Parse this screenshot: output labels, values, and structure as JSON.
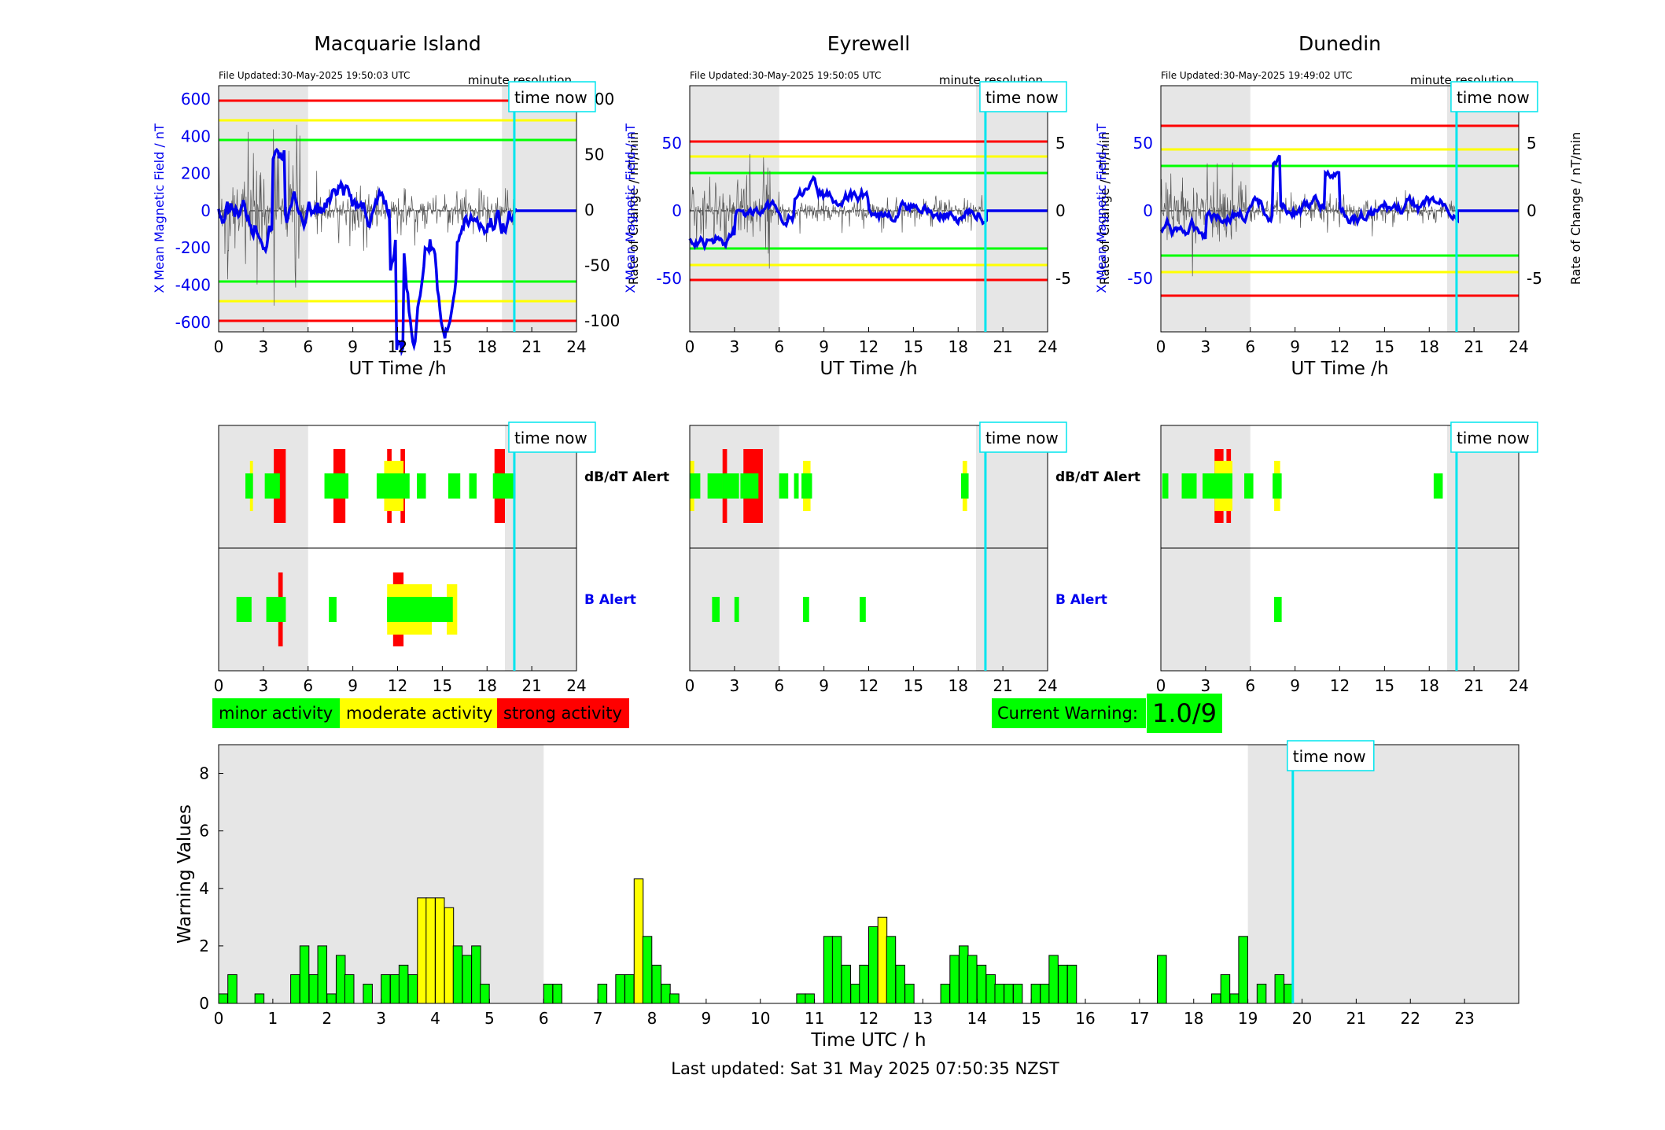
{
  "panels": [
    {
      "title": "Macquarie Island",
      "file_updated": "File Updated:30-May-2025 19:50:03 UTC",
      "resolution": "minute resolution",
      "ylabel_left": "X Mean Magnetic Field / nT",
      "ylabel_right": "Rate of Change / nT/min",
      "left_ticks": [
        "600",
        "400",
        "200",
        "0",
        "-200",
        "-400",
        "-600"
      ],
      "right_ticks": [
        "100",
        "50",
        "0",
        "-50",
        "-100"
      ]
    },
    {
      "title": "Eyrewell",
      "file_updated": "File Updated:30-May-2025 19:50:05 UTC",
      "resolution": "minute resolution",
      "ylabel_left": "X Mean Magnetic Field / nT",
      "ylabel_right": "Rate of Change / nT/min",
      "left_ticks": [
        "50",
        "0",
        "-50"
      ],
      "right_ticks": [
        "5",
        "0",
        "-5"
      ]
    },
    {
      "title": "Dunedin",
      "file_updated": "File Updated:30-May-2025 19:49:02 UTC",
      "resolution": "minute resolution",
      "ylabel_left": "X Mean Magnetic Field / nT",
      "ylabel_right": "Rate of Change / nT/min",
      "left_ticks": [
        "50",
        "0",
        "-50"
      ],
      "right_ticks": [
        "5",
        "0",
        "-5"
      ]
    }
  ],
  "top_xlabel": "UT Time /h",
  "hour_ticks": [
    "0",
    "3",
    "6",
    "9",
    "12",
    "15",
    "18",
    "21",
    "24"
  ],
  "time_now_label": "time now",
  "alert_labels": {
    "dbdt": "dB/dT Alert",
    "b": "B Alert"
  },
  "legend": {
    "minor": "minor activity",
    "moderate": "moderate activity",
    "strong": "strong activity"
  },
  "current_warning": {
    "label": "Current Warning:",
    "value": "1.0/9"
  },
  "colors": {
    "minor": "#00ff00",
    "moderate": "#ffff00",
    "strong": "#ff0000",
    "now_line": "#00e5ee",
    "field_line": "#0000ee",
    "shade": "#e6e6e6"
  },
  "alert_strips": {
    "dbdt": [
      [
        [
          1.8,
          2.3,
          1
        ],
        [
          2.1,
          2.3,
          2
        ],
        [
          3.1,
          4.1,
          1
        ],
        [
          3.7,
          4.5,
          3
        ],
        [
          7.1,
          8.7,
          1
        ],
        [
          7.7,
          8.5,
          3
        ],
        [
          10.6,
          12.8,
          1
        ],
        [
          11.1,
          12.4,
          2
        ],
        [
          11.3,
          11.6,
          3
        ],
        [
          12.2,
          12.5,
          3
        ],
        [
          13.3,
          13.9,
          1
        ],
        [
          15.4,
          16.2,
          1
        ],
        [
          16.8,
          17.3,
          1
        ],
        [
          18.4,
          19.9,
          1
        ],
        [
          18.5,
          19.2,
          3
        ]
      ],
      [
        [
          0,
          0.7,
          1
        ],
        [
          0,
          0.3,
          2
        ],
        [
          1.2,
          2.2,
          1
        ],
        [
          2.2,
          3.3,
          1
        ],
        [
          2.2,
          2.5,
          3
        ],
        [
          3.6,
          4.9,
          3
        ],
        [
          3.4,
          4.6,
          1
        ],
        [
          6,
          6.6,
          1
        ],
        [
          7.0,
          7.3,
          1
        ],
        [
          7.5,
          8.2,
          1
        ],
        [
          7.6,
          8.1,
          2
        ],
        [
          18.2,
          18.7,
          1
        ],
        [
          18.3,
          18.6,
          2
        ]
      ],
      [
        [
          0.1,
          0.5,
          1
        ],
        [
          1.4,
          2.4,
          1
        ],
        [
          2.8,
          4.8,
          1
        ],
        [
          3.6,
          4.2,
          3
        ],
        [
          4.4,
          4.7,
          3
        ],
        [
          3.6,
          4.8,
          2
        ],
        [
          5.6,
          6.2,
          1
        ],
        [
          7.5,
          8.1,
          1
        ],
        [
          7.6,
          8.0,
          2
        ],
        [
          18.3,
          18.9,
          1
        ]
      ]
    ],
    "b": [
      [
        [
          1.2,
          2.2,
          1
        ],
        [
          3.2,
          4.5,
          1
        ],
        [
          4.0,
          4.3,
          3
        ],
        [
          7.4,
          7.9,
          1
        ],
        [
          11.3,
          13.5,
          2
        ],
        [
          11.7,
          12.4,
          3
        ],
        [
          11.3,
          15.7,
          1
        ],
        [
          13.4,
          14.3,
          2
        ],
        [
          15.3,
          16.0,
          2
        ]
      ],
      [
        [
          1.5,
          2.0,
          1
        ],
        [
          3.0,
          3.3,
          1
        ],
        [
          7.6,
          8.0,
          1
        ],
        [
          11.4,
          11.8,
          1
        ]
      ],
      [
        [
          7.6,
          8.1,
          1
        ]
      ]
    ]
  },
  "chart_data": {
    "type": "bar",
    "title": "",
    "xlabel": "Time UTC / h",
    "ylabel": "Warning Values",
    "ylim": [
      0,
      9
    ],
    "xlim": [
      0,
      24
    ],
    "xtick_labels": [
      "0",
      "1",
      "2",
      "3",
      "4",
      "5",
      "6",
      "7",
      "8",
      "9",
      "10",
      "11",
      "12",
      "13",
      "14",
      "15",
      "16",
      "17",
      "18",
      "19",
      "20",
      "21",
      "22",
      "23"
    ],
    "ytick_labels": [
      "0",
      "2",
      "4",
      "6",
      "8"
    ],
    "bar_width_h": 0.1667,
    "shaded_ranges_h": [
      [
        0,
        6
      ],
      [
        19,
        24
      ]
    ],
    "time_now_h": 19.83,
    "series": [
      {
        "x": [
          0.0,
          0.17,
          0.67,
          1.33,
          1.5,
          1.67,
          1.83,
          2.0,
          2.17,
          2.33,
          2.67,
          3.0,
          3.17,
          3.33,
          3.5,
          3.67,
          3.83,
          4.0,
          4.17,
          4.33,
          4.5,
          4.67,
          4.83,
          6.0,
          6.17,
          7.0,
          7.33,
          7.5,
          7.67,
          7.83,
          8.0,
          8.17,
          8.33,
          10.67,
          10.83,
          11.17,
          11.33,
          11.5,
          11.67,
          11.83,
          12.0,
          12.17,
          12.33,
          12.5,
          12.67,
          13.33,
          13.5,
          13.67,
          13.83,
          14.0,
          14.17,
          14.33,
          14.5,
          14.67,
          15.0,
          15.17,
          15.33,
          15.5,
          15.67,
          17.33,
          18.33,
          18.5,
          18.67,
          18.83,
          19.17,
          19.5,
          19.67
        ],
        "values": [
          0.33,
          1.0,
          0.33,
          1.0,
          2.0,
          1.0,
          2.0,
          0.33,
          1.67,
          1.0,
          0.67,
          1.0,
          1.0,
          1.33,
          1.0,
          3.67,
          3.67,
          3.67,
          3.33,
          2.0,
          1.67,
          2.0,
          0.67,
          0.67,
          0.67,
          0.67,
          1.0,
          1.0,
          4.33,
          2.33,
          1.33,
          0.67,
          0.33,
          0.33,
          0.33,
          2.33,
          2.33,
          1.33,
          0.67,
          1.33,
          2.67,
          3.0,
          2.33,
          1.33,
          0.67,
          0.67,
          1.67,
          2.0,
          1.67,
          1.33,
          1.0,
          0.67,
          0.67,
          0.67,
          0.67,
          0.67,
          1.67,
          1.33,
          1.33,
          1.67,
          0.33,
          1.0,
          0.33,
          2.33,
          0.67,
          1.0,
          0.67
        ]
      }
    ],
    "color_thresholds": {
      "yellow_min": 3.0
    }
  },
  "footer": "Last updated: Sat 31 May 2025 07:50:35 NZST"
}
